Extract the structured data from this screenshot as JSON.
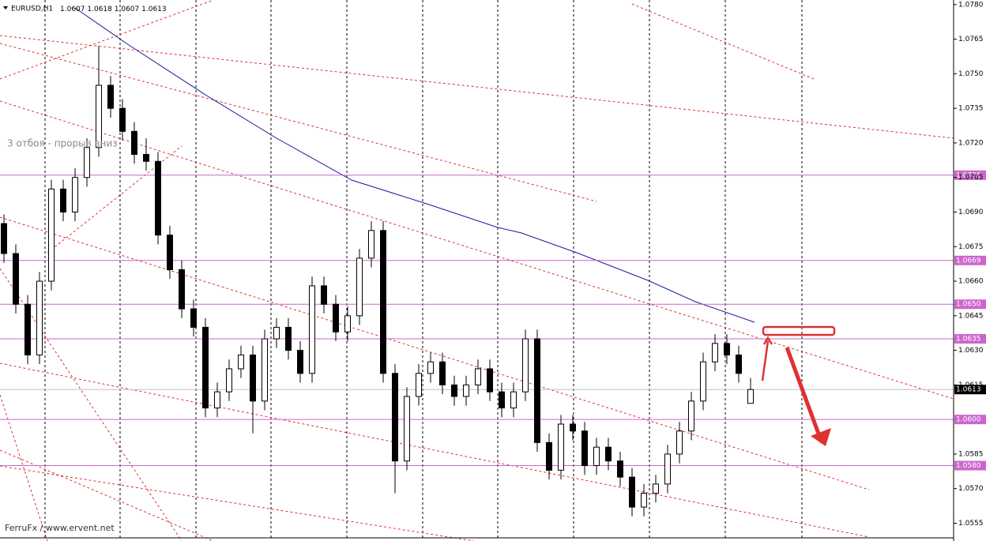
{
  "chart_data": {
    "type": "candlestick",
    "title": "EURUSD,H1",
    "annotation": "3 отбоя - прорыв вниз",
    "watermark": "FerruFx / www.ervent.net",
    "open": [
      1.0685,
      1.0672,
      1.065,
      1.0628,
      1.066,
      1.07,
      1.069,
      1.0705,
      1.0718,
      1.0745,
      1.0735,
      1.0725,
      1.0715,
      1.0712,
      1.068,
      1.0665,
      1.0648,
      1.064,
      1.0605,
      1.0612,
      1.0622,
      1.0628,
      1.0608,
      1.0635,
      1.064,
      1.063,
      1.062,
      1.0658,
      1.065,
      1.0638,
      1.0645,
      1.067,
      1.0682,
      1.062,
      1.0582,
      1.061,
      1.062,
      1.0625,
      1.0615,
      1.061,
      1.0615,
      1.0622,
      1.0612,
      1.0605,
      1.0612,
      1.0635,
      1.059,
      1.0578,
      1.0598,
      1.0595,
      1.058,
      1.0588,
      1.0582,
      1.0575,
      1.0562,
      1.0568,
      1.0572,
      1.0585,
      1.0595,
      1.0608,
      1.0625,
      1.0633,
      1.0628,
      1.0607
    ],
    "high": [
      1.0689,
      1.0676,
      1.0654,
      1.0664,
      1.0704,
      1.0704,
      1.0709,
      1.0722,
      1.0762,
      1.0749,
      1.0739,
      1.0729,
      1.0722,
      1.0716,
      1.0684,
      1.0669,
      1.0652,
      1.0644,
      1.0616,
      1.0626,
      1.0632,
      1.0632,
      1.0639,
      1.0644,
      1.0644,
      1.0634,
      1.0662,
      1.0662,
      1.0654,
      1.0649,
      1.0674,
      1.0686,
      1.0686,
      1.0624,
      1.0614,
      1.0624,
      1.0629,
      1.0629,
      1.0619,
      1.0619,
      1.0626,
      1.0626,
      1.0616,
      1.0616,
      1.0639,
      1.0639,
      1.0594,
      1.0602,
      1.0602,
      1.0599,
      1.0592,
      1.0592,
      1.0586,
      1.0579,
      1.0572,
      1.0576,
      1.0589,
      1.0599,
      1.0612,
      1.0629,
      1.0637,
      1.0637,
      1.0632,
      1.0618
    ],
    "low": [
      1.0668,
      1.0646,
      1.0624,
      1.0624,
      1.0656,
      1.0686,
      1.0686,
      1.0701,
      1.0714,
      1.0731,
      1.0721,
      1.0711,
      1.0708,
      1.0676,
      1.0661,
      1.0644,
      1.0636,
      1.0601,
      1.0601,
      1.0608,
      1.0618,
      1.0594,
      1.0604,
      1.0631,
      1.0626,
      1.0616,
      1.0616,
      1.0646,
      1.0634,
      1.0634,
      1.0641,
      1.0666,
      1.0616,
      1.0568,
      1.0578,
      1.0606,
      1.0616,
      1.0611,
      1.0606,
      1.0606,
      1.0611,
      1.0608,
      1.0601,
      1.0601,
      1.0608,
      1.0586,
      1.0574,
      1.0574,
      1.0591,
      1.0576,
      1.0576,
      1.0578,
      1.0571,
      1.0558,
      1.0558,
      1.0564,
      1.0568,
      1.0581,
      1.0591,
      1.0604,
      1.0621,
      1.0624,
      1.0616,
      1.0607
    ],
    "close": [
      1.0672,
      1.065,
      1.0628,
      1.066,
      1.07,
      1.069,
      1.0705,
      1.0718,
      1.0745,
      1.0735,
      1.0725,
      1.0715,
      1.0712,
      1.068,
      1.0665,
      1.0648,
      1.064,
      1.0605,
      1.0612,
      1.0622,
      1.0628,
      1.0608,
      1.0635,
      1.064,
      1.063,
      1.062,
      1.0658,
      1.065,
      1.0638,
      1.0645,
      1.067,
      1.0682,
      1.062,
      1.0582,
      1.061,
      1.062,
      1.0625,
      1.0615,
      1.061,
      1.0615,
      1.0622,
      1.0612,
      1.0605,
      1.0612,
      1.0635,
      1.059,
      1.0578,
      1.0598,
      1.0595,
      1.058,
      1.0588,
      1.0582,
      1.0575,
      1.0562,
      1.0568,
      1.0572,
      1.0585,
      1.0595,
      1.0608,
      1.0625,
      1.0633,
      1.0628,
      1.062,
      1.0613
    ],
    "ylim": [
      1.0549,
      1.0782
    ],
    "yticks": [
      {
        "value": 1.078,
        "label": "1.0780"
      },
      1.0765,
      {
        "value": 1.075,
        "label": "1.0750"
      },
      1.0735,
      {
        "value": 1.072,
        "label": "1.0720"
      },
      1.0705,
      {
        "value": 1.069,
        "label": "1.0690"
      },
      1.0675,
      {
        "value": 1.066,
        "label": "1.0660"
      },
      1.0645,
      {
        "value": 1.063,
        "label": "1.0630"
      },
      1.0615,
      1.0585,
      {
        "value": 1.057,
        "label": "1.0570"
      },
      1.0555
    ],
    "levels": [
      1.0706,
      1.0669,
      {
        "value": 1.065,
        "label": "1.0650"
      },
      1.0635,
      {
        "value": 1.06,
        "label": "1.0600"
      },
      {
        "value": 1.058,
        "label": "1.0580"
      }
    ],
    "level_color": "#cc66cc",
    "up_color": "#ffffff",
    "down_color": "#000000"
  }
}
